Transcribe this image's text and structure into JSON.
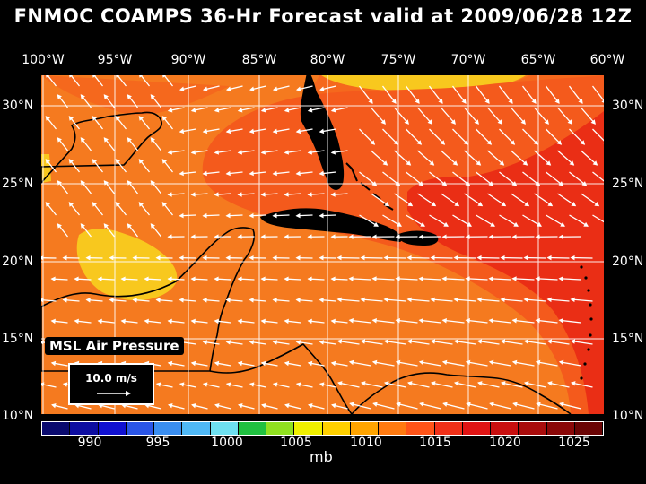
{
  "title": "FNMOC COAMPS 36-Hr Forecast valid at 2009/06/28 12Z",
  "field_label": "MSL Air Pressure",
  "reference_vector": "10.0 m/s",
  "units": "mb",
  "longitudes": [
    "100°W",
    "95°W",
    "90°W",
    "85°W",
    "80°W",
    "75°W",
    "70°W",
    "65°W",
    "60°W"
  ],
  "latitudes": [
    "30°N",
    "25°N",
    "20°N",
    "15°N",
    "10°N"
  ],
  "scale_labels": [
    "990",
    "995",
    "1000",
    "1005",
    "1010",
    "1015",
    "1020",
    "1025"
  ],
  "colors": {
    "background": "#000000",
    "scale": [
      "#0a0a6e",
      "#0d0da0",
      "#1010d0",
      "#2a55e6",
      "#3a8ef0",
      "#4fb8f5",
      "#6ee0f0",
      "#20c040",
      "#90e020",
      "#f0f000",
      "#ffd000",
      "#ffa400",
      "#ff7a10",
      "#ff5418",
      "#f03018",
      "#e01414",
      "#c80f0f",
      "#a80c0c",
      "#8a0808",
      "#6a0404"
    ],
    "base": "#f57a1f",
    "low": "#f8c81e",
    "mid": "#f45a1c",
    "high": "#ea2e15",
    "land": "#000000",
    "wind": "#ffffff"
  }
}
